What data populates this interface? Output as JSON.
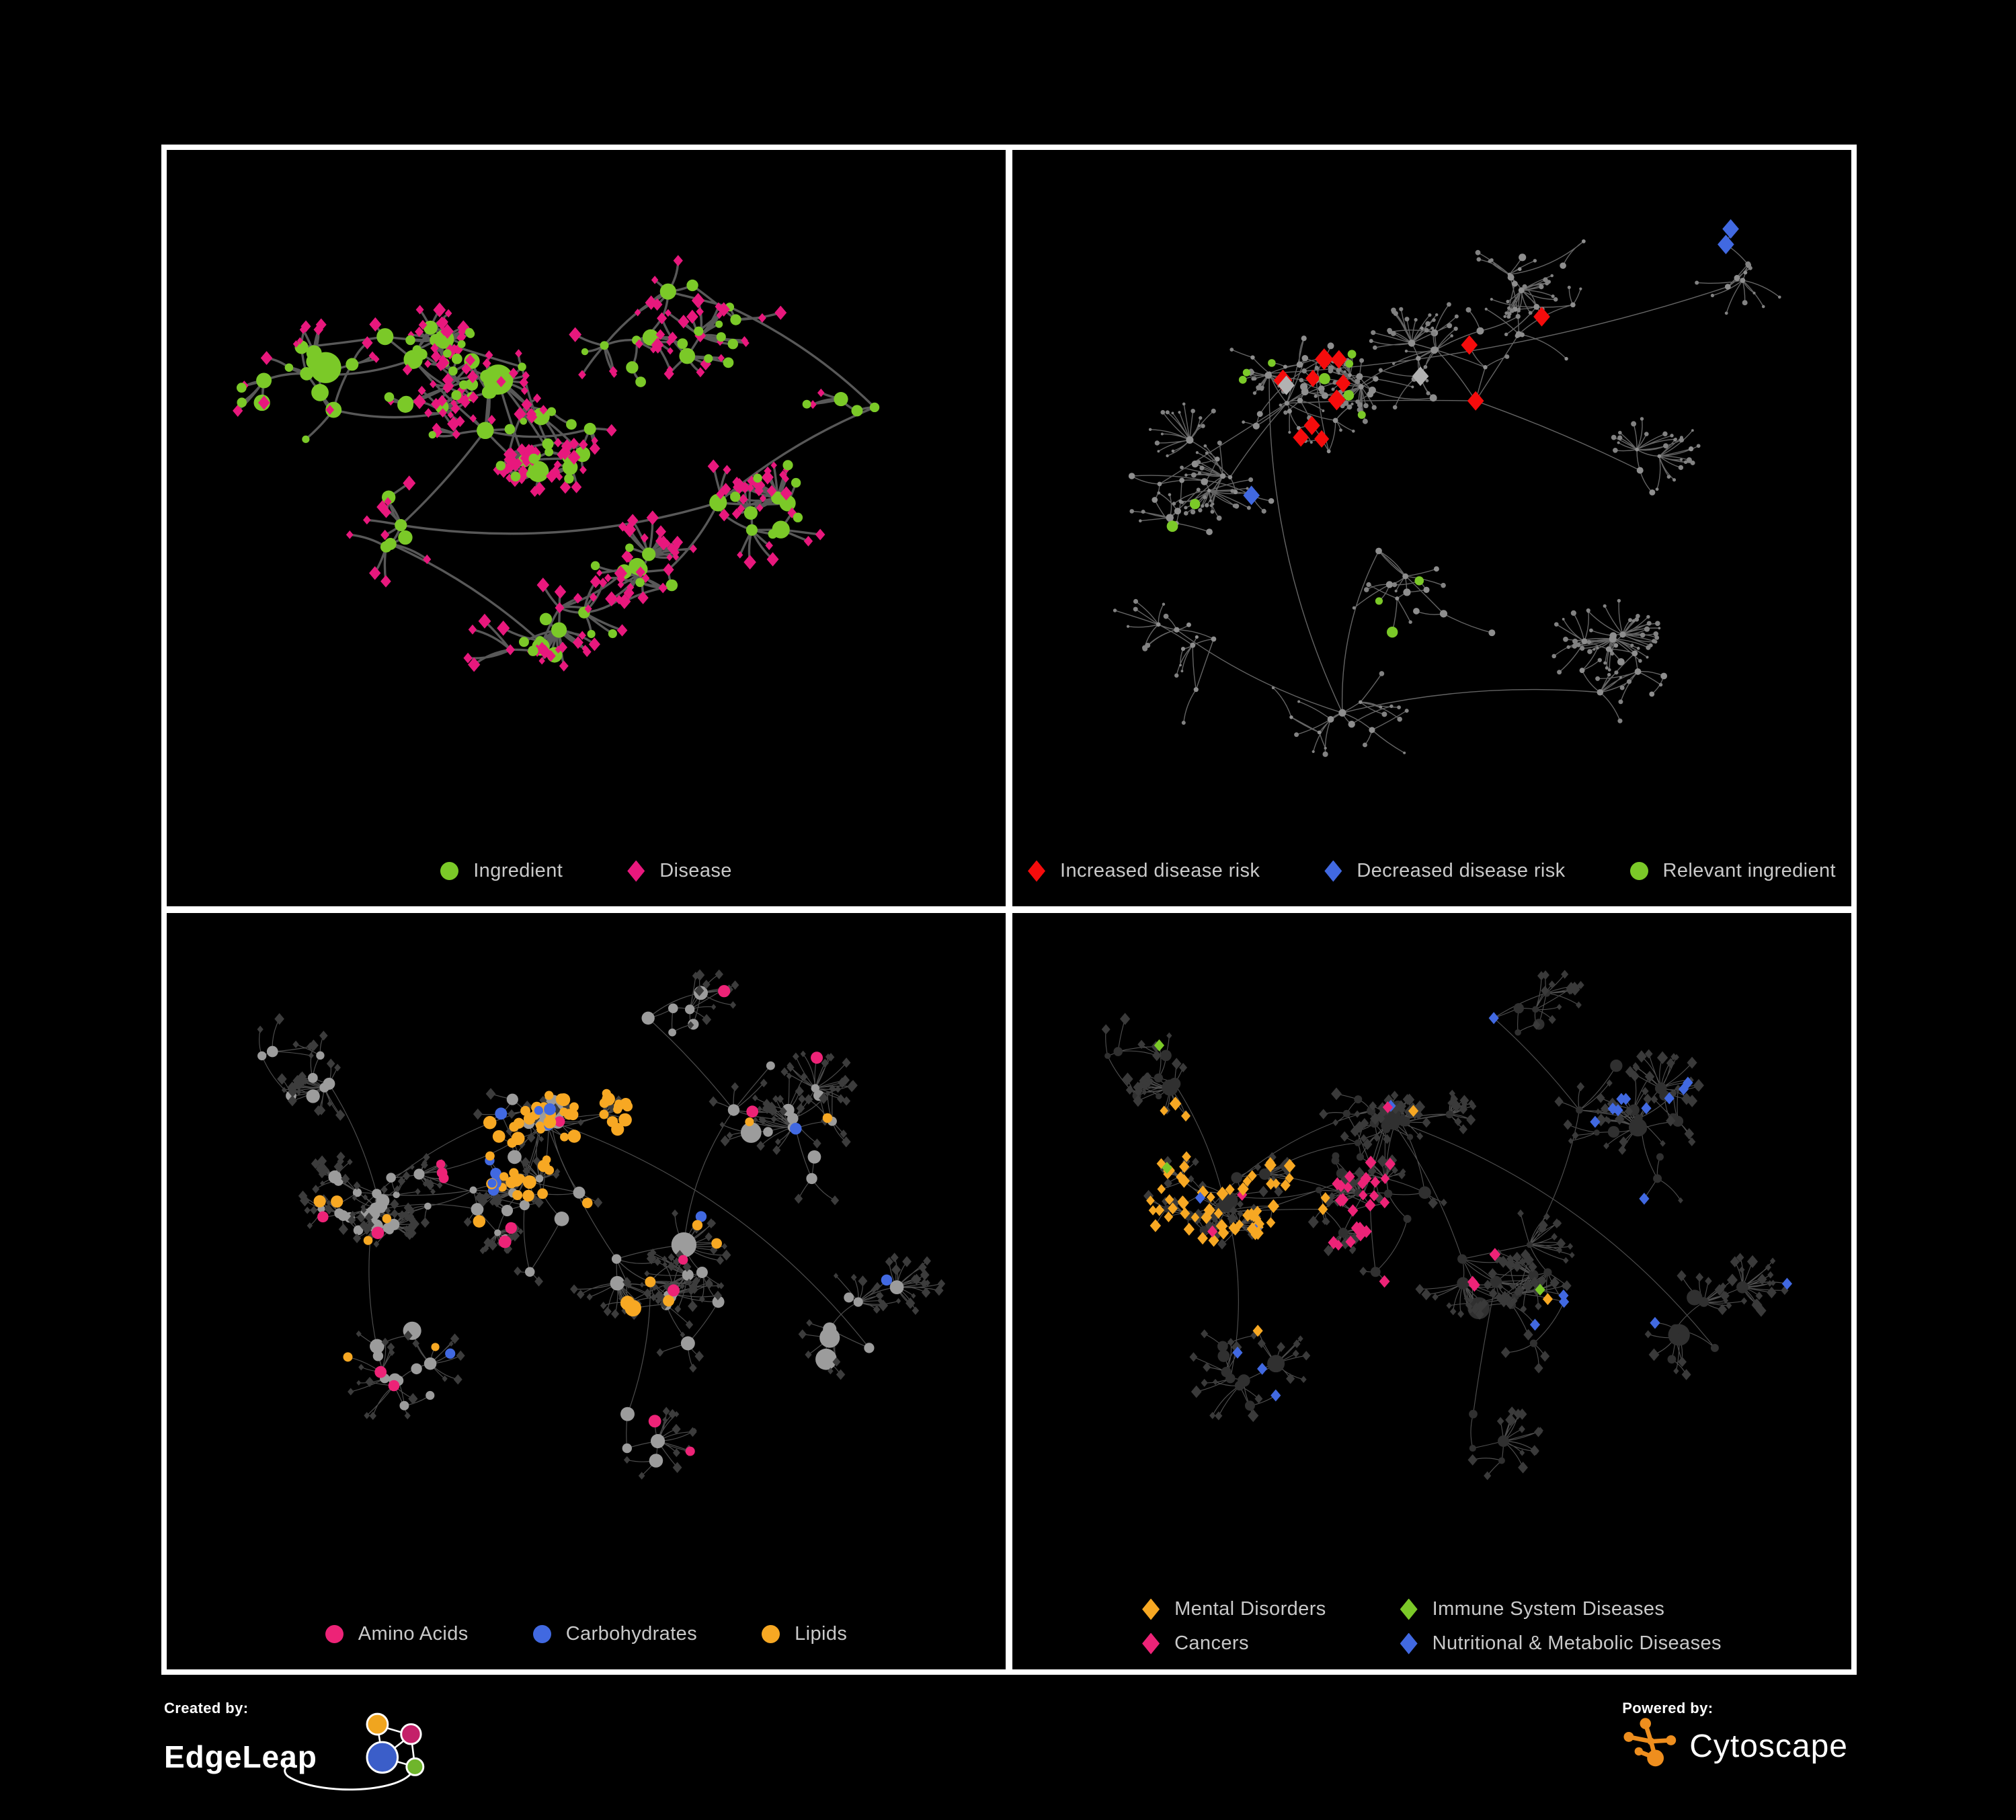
{
  "page": {
    "background": "#000000",
    "panel_border": "#ffffff",
    "legend_text_color": "#c9c9c9"
  },
  "colors": {
    "green": "#7bc928",
    "magenta": "#e8187d",
    "pink": "#ed2377",
    "red": "#f50c0c",
    "blue": "#4169e1",
    "orange": "#f7a823",
    "silver": "#b2b2b2"
  },
  "footer": {
    "created_by": {
      "label": "Created by:",
      "brand": "EdgeLeap"
    },
    "powered_by": {
      "label": "Powered by:",
      "brand": "Cytoscape"
    }
  },
  "chart_data": [
    {
      "id": "ingredient-disease-network",
      "type": "network",
      "position": "top-left",
      "legend": [
        {
          "label": "Ingredient",
          "shape": "circle",
          "color": "#7bc928"
        },
        {
          "label": "Disease",
          "shape": "diamond",
          "color": "#e8187d"
        }
      ],
      "node_counts_estimate": {
        "Ingredient": 165,
        "Disease": 440
      },
      "edge_style": {
        "color": "#5f5f5f",
        "width": 3.4,
        "opacity": 0.92
      },
      "gen": {
        "seed": 11,
        "hubs": 100,
        "leafMax": 10,
        "burst": 0.07,
        "extraEdges": 30,
        "bigHubProb": 0.07,
        "clusters": [
          {
            "x": 0.36,
            "y": 0.33,
            "r": 0.1,
            "w": 3,
            "dense": true
          },
          {
            "x": 0.3,
            "y": 0.26,
            "r": 0.06,
            "w": 2,
            "dense": true
          },
          {
            "x": 0.47,
            "y": 0.43,
            "r": 0.08,
            "w": 2,
            "dense": true
          },
          {
            "x": 0.24,
            "y": 0.55,
            "r": 0.09,
            "w": 1.5
          },
          {
            "x": 0.62,
            "y": 0.24,
            "r": 0.1,
            "w": 1.5
          },
          {
            "x": 0.73,
            "y": 0.52,
            "r": 0.08,
            "w": 1
          },
          {
            "x": 0.46,
            "y": 0.74,
            "r": 0.09,
            "w": 1.4
          },
          {
            "x": 0.15,
            "y": 0.31,
            "r": 0.08,
            "w": 1
          },
          {
            "x": 0.86,
            "y": 0.34,
            "r": 0.06,
            "w": 0.8
          },
          {
            "x": 0.6,
            "y": 0.62,
            "r": 0.07,
            "w": 0.9
          }
        ],
        "hub": {
          "shape": "circle",
          "color": "#7bc928",
          "size": 8.5
        },
        "leaf": {
          "shape": "diamond",
          "color": "#e8187d",
          "size": 6.5
        },
        "rules": [
          {
            "applies": "leaf",
            "prob": 0.16,
            "shape": "circle",
            "color": "#7bc928",
            "size": 6.5,
            "jitter": 3
          },
          {
            "applies": "hub",
            "prob": 0.24,
            "shape": "diamond",
            "color": "#e8187d",
            "size": 7.5,
            "jitter": 3
          }
        ]
      }
    },
    {
      "id": "disease-risk-network",
      "type": "network",
      "position": "top-right",
      "legend": [
        {
          "label": "Increased disease risk",
          "shape": "diamond",
          "color": "#f50c0c"
        },
        {
          "label": "Decreased disease risk",
          "shape": "diamond",
          "color": "#4169e1"
        },
        {
          "label": "Relevant ingredient",
          "shape": "circle",
          "color": "#7bc928"
        }
      ],
      "node_counts_estimate": {
        "Increased disease risk": 28,
        "Decreased disease risk": 8,
        "Relevant ingredient": 18,
        "Unlabeled gray diamonds": 8,
        "Other nodes": 620
      },
      "edge_style": {
        "color": "#7d7d7d",
        "width": 1.4,
        "opacity": 0.8
      },
      "gen": {
        "seed": 23,
        "hubs": 130,
        "leafMax": 7,
        "burst": 0.05,
        "extraEdges": 26,
        "bigHubProb": 0,
        "clusters": [
          {
            "x": 0.33,
            "y": 0.34,
            "r": 0.11,
            "w": 3,
            "dense": true
          },
          {
            "x": 0.5,
            "y": 0.28,
            "r": 0.1,
            "w": 2
          },
          {
            "x": 0.2,
            "y": 0.5,
            "r": 0.11,
            "w": 1.5
          },
          {
            "x": 0.64,
            "y": 0.18,
            "r": 0.11,
            "w": 1.2
          },
          {
            "x": 0.8,
            "y": 0.44,
            "r": 0.1,
            "w": 1
          },
          {
            "x": 0.5,
            "y": 0.64,
            "r": 0.11,
            "w": 1.5
          },
          {
            "x": 0.74,
            "y": 0.76,
            "r": 0.09,
            "w": 1
          },
          {
            "x": 0.9,
            "y": 0.14,
            "r": 0.06,
            "w": 0.7
          },
          {
            "x": 0.16,
            "y": 0.74,
            "r": 0.08,
            "w": 0.8
          },
          {
            "x": 0.38,
            "y": 0.86,
            "r": 0.07,
            "w": 0.7
          }
        ],
        "hub": {
          "shape": "circle",
          "color": "#8e8e8e",
          "size": 3.6
        },
        "leaf": {
          "shape": "circle",
          "color": "#828282",
          "size": 2.6
        },
        "rules": [
          {
            "applies": "any",
            "region": {
              "x": 0.29,
              "y": 0.47,
              "r": 0.05
            },
            "prob": 0.5,
            "shape": "diamond",
            "color": "#4169e1",
            "size": 13
          },
          {
            "applies": "any",
            "region": {
              "x": 0.9,
              "y": 0.08,
              "r": 0.05
            },
            "prob": 0.6,
            "shape": "diamond",
            "color": "#4169e1",
            "size": 13
          },
          {
            "applies": "any",
            "region": {
              "x": 0.44,
              "y": 0.42,
              "r": 0.2
            },
            "prob": 0.085,
            "shape": "diamond",
            "color": "#f50c0c",
            "size": 14,
            "jitter": 5
          },
          {
            "applies": "any",
            "region": {
              "x": 0.61,
              "y": 0.86,
              "r": 0.07
            },
            "prob": 0.28,
            "shape": "diamond",
            "color": "#f50c0c",
            "size": 13
          },
          {
            "applies": "any",
            "region": {
              "x": 0.72,
              "y": 0.4,
              "r": 0.26
            },
            "prob": 0.02,
            "shape": "diamond",
            "color": "#f50c0c",
            "size": 13
          },
          {
            "applies": "any",
            "region": {
              "x": 0.46,
              "y": 0.38,
              "r": 0.17
            },
            "prob": 0.012,
            "shape": "diamond",
            "color": "#4169e1",
            "size": 13
          },
          {
            "applies": "any",
            "region": {
              "x": 0.47,
              "y": 0.45,
              "r": 0.22
            },
            "prob": 0.024,
            "shape": "diamond",
            "color": "#b2b2b2",
            "size": 13
          },
          {
            "applies": "any",
            "region": {
              "x": 0.4,
              "y": 0.48,
              "r": 0.26
            },
            "prob": 0.055,
            "shape": "circle",
            "color": "#7bc928",
            "size": 7,
            "jitter": 3
          }
        ]
      }
    },
    {
      "id": "nutrient-class-network",
      "type": "network",
      "position": "bottom-left",
      "legend": [
        {
          "label": "Amino Acids",
          "shape": "circle",
          "color": "#ed2377"
        },
        {
          "label": "Carbohydrates",
          "shape": "circle",
          "color": "#4169e1"
        },
        {
          "label": "Lipids",
          "shape": "circle",
          "color": "#f7a823"
        }
      ],
      "node_counts_estimate": {
        "Amino Acids": 18,
        "Carbohydrates": 13,
        "Lipids": 55,
        "Other ingredients": 230,
        "Diseases dimmed": 430
      },
      "edge_style": {
        "color": "#8a8a8a",
        "width": 1.2,
        "opacity": 0.55
      },
      "gen": {
        "seed": 41,
        "hubs": 125,
        "leafMax": 10,
        "burst": 0.07,
        "extraEdges": 34,
        "bigHubProb": 0.06,
        "clusters": [
          {
            "x": 0.38,
            "y": 0.4,
            "r": 0.13,
            "w": 3,
            "dense": true
          },
          {
            "x": 0.21,
            "y": 0.42,
            "r": 0.08,
            "w": 2,
            "dense": true
          },
          {
            "x": 0.44,
            "y": 0.27,
            "r": 0.08,
            "w": 2,
            "dense": true
          },
          {
            "x": 0.6,
            "y": 0.55,
            "r": 0.1,
            "w": 1.5
          },
          {
            "x": 0.76,
            "y": 0.29,
            "r": 0.1,
            "w": 1.2
          },
          {
            "x": 0.25,
            "y": 0.68,
            "r": 0.1,
            "w": 1.2
          },
          {
            "x": 0.55,
            "y": 0.8,
            "r": 0.09,
            "w": 1
          },
          {
            "x": 0.86,
            "y": 0.6,
            "r": 0.08,
            "w": 0.8
          },
          {
            "x": 0.14,
            "y": 0.22,
            "r": 0.08,
            "w": 0.8
          },
          {
            "x": 0.63,
            "y": 0.12,
            "r": 0.06,
            "w": 0.6
          }
        ],
        "hub": {
          "shape": "circle",
          "color": "#9c9c9c",
          "size": 7
        },
        "leaf": {
          "shape": "diamond",
          "color": "#3c3c3c",
          "size": 5
        },
        "rules": [
          {
            "applies": "hub",
            "region": {
              "x": 0.55,
              "y": 0.62,
              "r": 0.05
            },
            "prob": 0.75,
            "shape": "circle",
            "color": "#f7a823",
            "size": 11,
            "jitter": 4
          },
          {
            "applies": "any",
            "region": {
              "x": 0.46,
              "y": 0.3,
              "r": 0.13
            },
            "prob": 0.42,
            "shape": "circle",
            "color": "#f7a823",
            "size": 8,
            "jitter": 4
          },
          {
            "applies": "any",
            "region": {
              "x": 0.44,
              "y": 0.33,
              "r": 0.09
            },
            "prob": 0.2,
            "shape": "circle",
            "color": "#4169e1",
            "size": 8,
            "jitter": 3
          },
          {
            "applies": "any",
            "prob": 0.03,
            "shape": "circle",
            "color": "#f7a823",
            "size": 8,
            "jitter": 4
          },
          {
            "applies": "any",
            "prob": 0.012,
            "shape": "circle",
            "color": "#4169e1",
            "size": 8,
            "jitter": 2
          },
          {
            "applies": "any",
            "prob": 0.026,
            "shape": "circle",
            "color": "#ed2377",
            "size": 8,
            "jitter": 3
          }
        ]
      }
    },
    {
      "id": "disease-class-network",
      "type": "network",
      "position": "bottom-right",
      "legend_columns": 2,
      "legend": [
        {
          "label": "Mental Disorders",
          "shape": "diamond",
          "color": "#f7a823"
        },
        {
          "label": "Immune System Diseases",
          "shape": "diamond",
          "color": "#7bc928"
        },
        {
          "label": "Cancers",
          "shape": "diamond",
          "color": "#ed2377"
        },
        {
          "label": "Nutritional & Metabolic Diseases",
          "shape": "diamond",
          "color": "#4169e1"
        }
      ],
      "node_counts_estimate": {
        "Mental Disorders": 85,
        "Immune System Diseases": 8,
        "Cancers": 55,
        "Nutritional & Metabolic Diseases": 75,
        "Other nodes dimmed": 450
      },
      "edge_style": {
        "color": "#9c9c9c",
        "width": 1.15,
        "opacity": 0.5
      },
      "gen": {
        "seed": 41,
        "hubs": 125,
        "leafMax": 10,
        "burst": 0.07,
        "extraEdges": 34,
        "bigHubProb": 0.06,
        "clusters": [
          {
            "x": 0.38,
            "y": 0.4,
            "r": 0.13,
            "w": 3,
            "dense": true
          },
          {
            "x": 0.21,
            "y": 0.42,
            "r": 0.08,
            "w": 2,
            "dense": true
          },
          {
            "x": 0.44,
            "y": 0.27,
            "r": 0.08,
            "w": 2,
            "dense": true
          },
          {
            "x": 0.6,
            "y": 0.55,
            "r": 0.1,
            "w": 1.5
          },
          {
            "x": 0.76,
            "y": 0.29,
            "r": 0.1,
            "w": 1.2
          },
          {
            "x": 0.25,
            "y": 0.68,
            "r": 0.1,
            "w": 1.2
          },
          {
            "x": 0.55,
            "y": 0.8,
            "r": 0.09,
            "w": 1
          },
          {
            "x": 0.86,
            "y": 0.6,
            "r": 0.08,
            "w": 0.8
          },
          {
            "x": 0.14,
            "y": 0.22,
            "r": 0.08,
            "w": 0.8
          },
          {
            "x": 0.63,
            "y": 0.12,
            "r": 0.06,
            "w": 0.6
          }
        ],
        "hub": {
          "shape": "circle",
          "color": "#303030",
          "size": 6
        },
        "leaf": {
          "shape": "diamond",
          "color": "#3a3a3a",
          "size": 5.5
        },
        "rules": [
          {
            "applies": "any",
            "region": {
              "x": 0.21,
              "y": 0.4,
              "r": 0.16
            },
            "prob": 0.5,
            "shape": "diamond",
            "color": "#f7a823",
            "size": 8,
            "jitter": 3
          },
          {
            "applies": "any",
            "region": {
              "x": 0.3,
              "y": 0.08,
              "r": 0.09
            },
            "prob": 0.22,
            "shape": "diamond",
            "color": "#f7a823",
            "size": 8
          },
          {
            "applies": "any",
            "region": {
              "x": 0.48,
              "y": 0.44,
              "r": 0.13
            },
            "prob": 0.38,
            "shape": "diamond",
            "color": "#ed2377",
            "size": 8,
            "jitter": 2
          },
          {
            "applies": "any",
            "region": {
              "x": 0.93,
              "y": 0.2,
              "r": 0.06
            },
            "prob": 0.5,
            "shape": "diamond",
            "color": "#ed2377",
            "size": 8
          },
          {
            "applies": "any",
            "region": {
              "x": 0.73,
              "y": 0.6,
              "r": 0.07
            },
            "prob": 0.5,
            "shape": "diamond",
            "color": "#4169e1",
            "size": 8
          },
          {
            "applies": "any",
            "region": {
              "x": 0.76,
              "y": 0.22,
              "r": 0.21
            },
            "prob": 0.09,
            "shape": "diamond",
            "color": "#4169e1",
            "size": 8
          },
          {
            "applies": "any",
            "prob": 0.02,
            "shape": "diamond",
            "color": "#4169e1",
            "size": 8
          },
          {
            "applies": "any",
            "prob": 0.012,
            "shape": "diamond",
            "color": "#f7a823",
            "size": 8
          },
          {
            "applies": "any",
            "prob": 0.008,
            "shape": "diamond",
            "color": "#ed2377",
            "size": 8
          },
          {
            "applies": "any",
            "prob": 0.012,
            "shape": "diamond",
            "color": "#7bc928",
            "size": 8
          }
        ]
      }
    }
  ]
}
